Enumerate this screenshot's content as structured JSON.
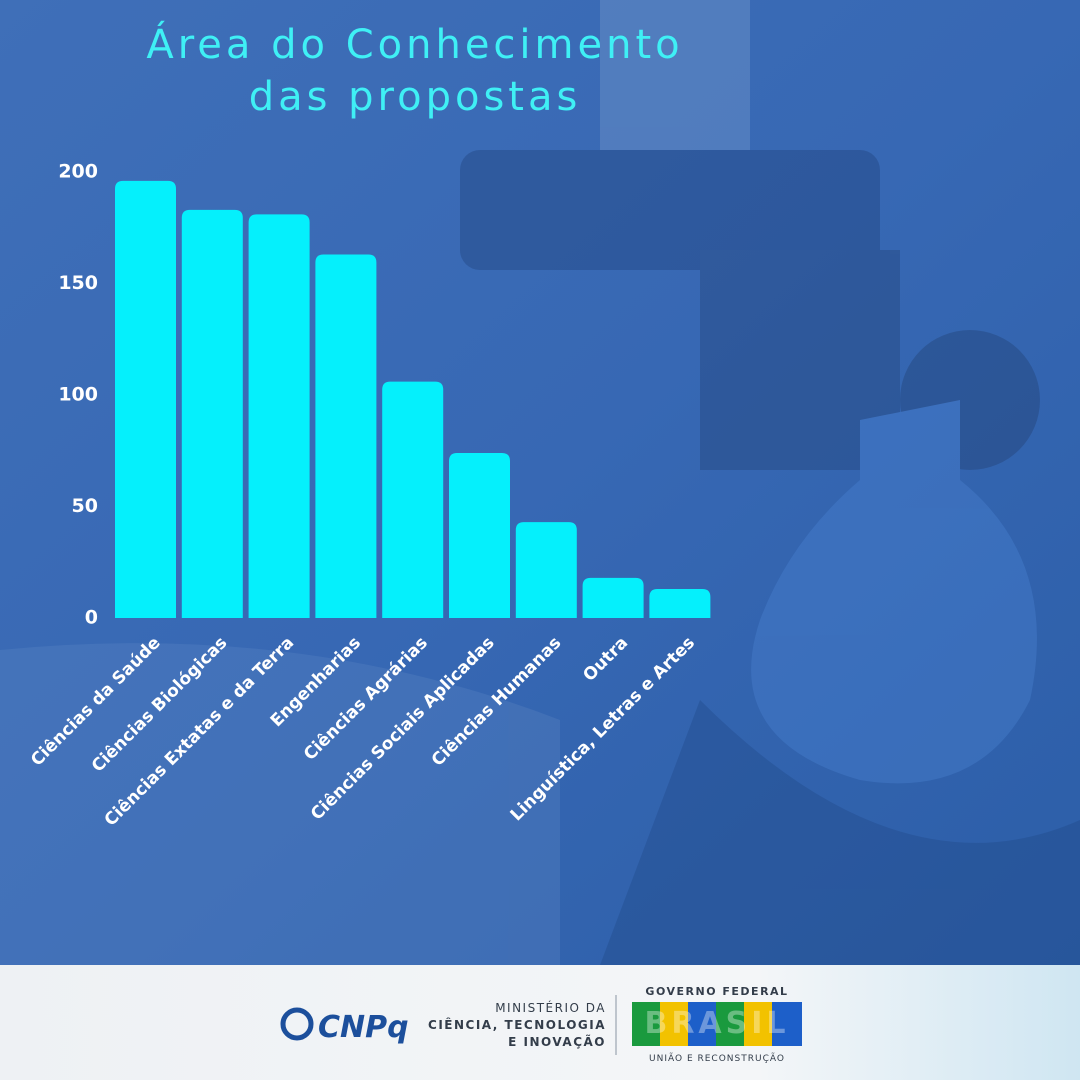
{
  "chart_data": {
    "type": "bar",
    "title": [
      "Área do Conhecimento",
      "das propostas"
    ],
    "categories": [
      "Ciências da Saúde",
      "Ciências Biológicas",
      "Ciências Extatas e da Terra",
      "Engenharias",
      "Ciências Agrárias",
      "Ciências Sociais Aplicadas",
      "Ciências Humanas",
      "Outra",
      "Linguística, Letras e Artes"
    ],
    "values": [
      196,
      183,
      181,
      163,
      106,
      74,
      43,
      18,
      13
    ],
    "color": "#05f0fc",
    "ylim": [
      0,
      200
    ],
    "yticks": [
      0,
      50,
      100,
      150,
      200
    ],
    "grid": false
  },
  "footer": {
    "cnpq": "CNPq",
    "ministry": [
      "MINISTÉRIO DA",
      "CIÊNCIA, TECNOLOGIA",
      "E INOVAÇÃO"
    ],
    "government": {
      "top": "GOVERNO FEDERAL",
      "name": "BRASIL",
      "bottom": "UNIÃO E RECONSTRUÇÃO"
    }
  }
}
